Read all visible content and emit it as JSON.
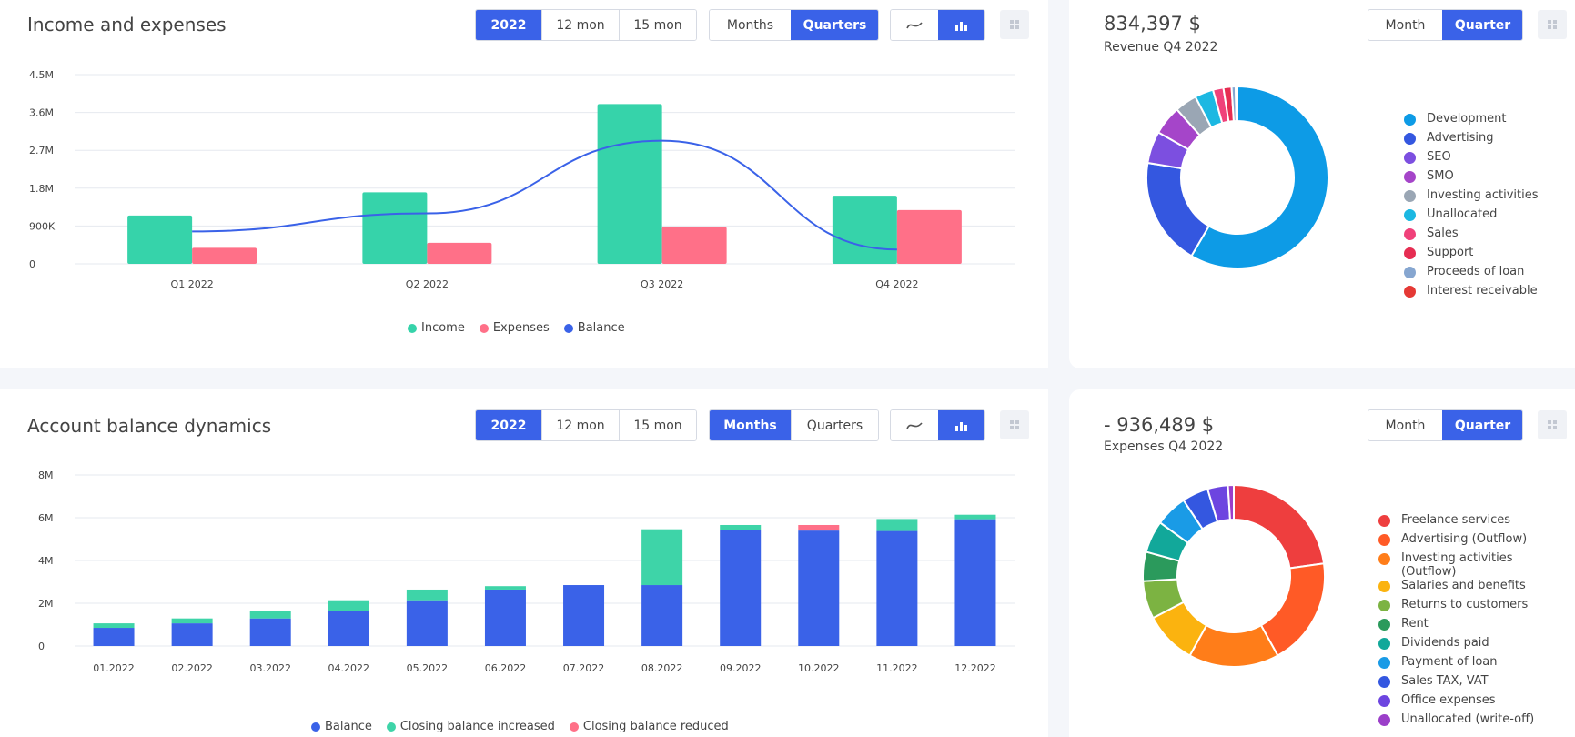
{
  "colors": {
    "accent": "#3a62e8",
    "income": "#36d3aa",
    "expenses": "#ff7088",
    "balance": "#3a62e8",
    "increase": "#3ed4a8",
    "decrease": "#ff7088"
  },
  "icons": {
    "line_chart": "line-chart-icon",
    "bar_chart": "bar-chart-icon",
    "menu": "grid-menu-icon"
  },
  "income_card": {
    "title": "Income and expenses",
    "period_buttons": [
      "2022",
      "12 mon",
      "15 mon"
    ],
    "granularity_buttons": [
      "Months",
      "Quarters"
    ],
    "legend": [
      "Income",
      "Expenses",
      "Balance"
    ]
  },
  "revenue_card": {
    "amount": "834,397 $",
    "subtitle": "Revenue Q4 2022",
    "buttons": [
      "Month",
      "Quarter"
    ],
    "legend": [
      "Development",
      "Advertising",
      "SEO",
      "SMO",
      "Investing activities",
      "Unallocated",
      "Sales",
      "Support",
      "Proceeds of loan",
      "Interest receivable"
    ]
  },
  "balance_card": {
    "title": "Account balance dynamics",
    "period_buttons": [
      "2022",
      "12 mon",
      "15 mon"
    ],
    "granularity_buttons": [
      "Months",
      "Quarters"
    ],
    "legend": [
      "Balance",
      "Closing balance increased",
      "Closing balance reduced"
    ]
  },
  "expenses_card": {
    "amount": "- 936,489 $",
    "subtitle": "Expenses Q4 2022",
    "buttons": [
      "Month",
      "Quarter"
    ],
    "legend": [
      "Freelance services",
      "Advertising (Outflow)",
      "Investing activities (Outflow)",
      "Salaries and benefits",
      "Returns to customers",
      "Rent",
      "Dividends paid",
      "Payment of loan",
      "Sales TAX, VAT",
      "Office expenses",
      "Unallocated (write-off)"
    ]
  },
  "chart_data": [
    {
      "type": "bar",
      "title": "Income and expenses",
      "categories": [
        "Q1 2022",
        "Q2 2022",
        "Q3 2022",
        "Q4 2022"
      ],
      "yticks": [
        "0",
        "900K",
        "1.8M",
        "2.7M",
        "3.6M",
        "4.5M"
      ],
      "ylim": [
        0,
        4500000
      ],
      "series": [
        {
          "name": "Income",
          "type": "bar",
          "color": "#36d3aa",
          "values": [
            1150000,
            1700000,
            3800000,
            1620000
          ]
        },
        {
          "name": "Expenses",
          "type": "bar",
          "color": "#ff7088",
          "values": [
            380000,
            500000,
            880000,
            1280000
          ]
        },
        {
          "name": "Balance",
          "type": "line",
          "color": "#3a62e8",
          "values": [
            770000,
            1200000,
            2930000,
            340000
          ]
        }
      ],
      "legend_position": "bottom",
      "grid": true
    },
    {
      "type": "pie",
      "title": "Revenue Q4 2022",
      "labels": [
        "Development",
        "Advertising",
        "SEO",
        "SMO",
        "Investing activities",
        "Unallocated",
        "Sales",
        "Support",
        "Proceeds of loan",
        "Interest receivable"
      ],
      "values": [
        56.5,
        18.5,
        5.5,
        5.0,
        3.8,
        3.2,
        1.8,
        1.4,
        0.7,
        0.3
      ],
      "colors": [
        "#0d9be6",
        "#3457e0",
        "#7c4fe0",
        "#a545c9",
        "#9aa6b4",
        "#1cb8e2",
        "#f0417a",
        "#e62d52",
        "#86a6d0",
        "#e53935"
      ],
      "legend_position": "right"
    },
    {
      "type": "bar",
      "stacked": true,
      "title": "Account balance dynamics",
      "categories": [
        "01.2022",
        "02.2022",
        "03.2022",
        "04.2022",
        "05.2022",
        "06.2022",
        "07.2022",
        "08.2022",
        "09.2022",
        "10.2022",
        "11.2022",
        "12.2022"
      ],
      "yticks": [
        "0",
        "2M",
        "4M",
        "6M",
        "8M"
      ],
      "ylim": [
        0,
        8000000
      ],
      "series": [
        {
          "name": "Balance",
          "color": "#3a62e8",
          "values": [
            850000,
            1060000,
            1290000,
            1620000,
            2140000,
            2640000,
            2850000,
            2850000,
            5430000,
            5400000,
            5380000,
            5930000
          ]
        },
        {
          "name": "Closing balance increased",
          "color": "#3ed4a8",
          "values": [
            210000,
            230000,
            350000,
            520000,
            500000,
            160000,
            0,
            2610000,
            230000,
            0,
            560000,
            210000
          ]
        },
        {
          "name": "Closing balance reduced",
          "color": "#ff7088",
          "values": [
            0,
            0,
            0,
            0,
            0,
            0,
            0,
            0,
            0,
            260000,
            0,
            0
          ]
        }
      ],
      "legend_position": "bottom",
      "grid": true
    },
    {
      "type": "pie",
      "title": "Expenses Q4 2022",
      "labels": [
        "Freelance services",
        "Advertising (Outflow)",
        "Investing activities (Outflow)",
        "Salaries and benefits",
        "Returns to customers",
        "Rent",
        "Dividends paid",
        "Payment of loan",
        "Sales TAX, VAT",
        "Office expenses",
        "Unallocated (write-off)"
      ],
      "values": [
        22.0,
        18.5,
        15.5,
        9.0,
        6.5,
        5.0,
        5.5,
        5.5,
        4.5,
        3.5,
        1.0
      ],
      "colors": [
        "#ee3e3e",
        "#ff5a26",
        "#ff7d19",
        "#fbb30f",
        "#7cb342",
        "#2b9a5c",
        "#12a89a",
        "#1a9be6",
        "#3457e0",
        "#6d45e0",
        "#9b3fc9"
      ],
      "legend_position": "right"
    }
  ]
}
